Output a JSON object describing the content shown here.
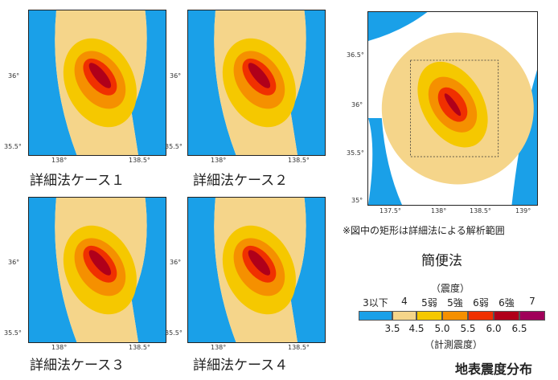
{
  "panels": [
    {
      "caption": "詳細法ケース１"
    },
    {
      "caption": "詳細法ケース２"
    },
    {
      "caption": "詳細法ケース３"
    },
    {
      "caption": "詳細法ケース４"
    }
  ],
  "ticks_small": {
    "y": [
      "36°",
      "35.5°"
    ],
    "x": [
      "138°",
      "138.5°"
    ]
  },
  "ticks_large": {
    "y": [
      "36.5°",
      "36°",
      "35.5°",
      "35°"
    ],
    "x": [
      "137.5°",
      "138°",
      "138.5°",
      "139°"
    ]
  },
  "simple_method": {
    "caption": "簡便法",
    "note": "※図中の矩形は詳細法による解析範囲"
  },
  "legend": {
    "top_label": "（震度）",
    "intensity_classes": [
      "3以下",
      "4",
      "5弱",
      "5強",
      "6弱",
      "6強",
      "7"
    ],
    "colors": [
      "#1aa0e8",
      "#f5d58a",
      "#f5c800",
      "#f59000",
      "#f03000",
      "#b0001a",
      "#a0005a"
    ],
    "values": [
      "3.5",
      "4.5",
      "5.0",
      "5.5",
      "6.0",
      "6.5"
    ],
    "bottom_label": "（計測震度）"
  },
  "footer_title": "地表震度分布"
}
